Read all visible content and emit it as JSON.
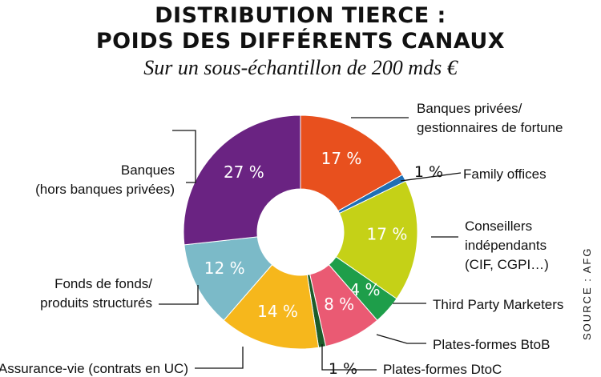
{
  "title_line1": "DISTRIBUTION TIERCE :",
  "title_line2": "POIDS DES DIFFÉRENTS CANAUX",
  "subtitle": "Sur un sous-échantillon de 200 mds €",
  "source": "SOURCE : AFG",
  "chart_data": {
    "type": "pie",
    "donut": true,
    "slices": [
      {
        "label": "Banques privées/ gestionnaires de fortune",
        "label_lines": [
          "Banques privées/",
          "gestionnaires de fortune"
        ],
        "value": 17,
        "value_label": "17 %",
        "color": "#e8501e"
      },
      {
        "label": "Family offices",
        "label_lines": [
          "Family offices"
        ],
        "value": 1,
        "value_label": "1 %",
        "color": "#1f6fb5"
      },
      {
        "label": "Conseillers indépendants (CIF, CGPI…)",
        "label_lines": [
          "Conseillers",
          "indépendants",
          "(CIF, CGPI…)"
        ],
        "value": 17,
        "value_label": "17 %",
        "color": "#c5d117"
      },
      {
        "label": "Third Party Marketers",
        "label_lines": [
          "Third Party Marketers"
        ],
        "value": 4,
        "value_label": "4 %",
        "color": "#1e9e4a"
      },
      {
        "label": "Plates-formes BtoB",
        "label_lines": [
          "Plates-formes BtoB"
        ],
        "value": 8,
        "value_label": "8 %",
        "color": "#ea5a73"
      },
      {
        "label": "Plates-formes DtoC",
        "label_lines": [
          "Plates-formes DtoC"
        ],
        "value": 1,
        "value_label": "1 %",
        "color": "#1d5c2a"
      },
      {
        "label": "Assurance-vie (contrats en UC)",
        "label_lines": [
          "Assurance-vie (contrats en UC)"
        ],
        "value": 14,
        "value_label": "14 %",
        "color": "#f6b71c"
      },
      {
        "label": "Fonds de fonds/ produits structurés",
        "label_lines": [
          "Fonds de fonds/",
          "produits structurés"
        ],
        "value": 12,
        "value_label": "12 %",
        "color": "#7bbac8"
      },
      {
        "label": "Banques (hors banques privées)",
        "label_lines": [
          "Banques",
          "(hors banques privées)"
        ],
        "value": 27,
        "value_label": "27 %",
        "color": "#6a2382"
      }
    ]
  }
}
